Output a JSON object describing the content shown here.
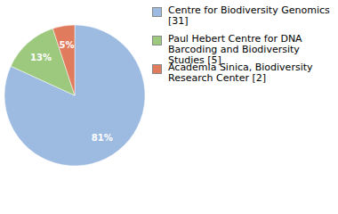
{
  "chart_data": {
    "type": "pie",
    "categories": [
      "Centre for Biodiversity Genomics [31]",
      "Paul Hebert Centre for DNA Barcoding and Biodiversity Studies [5]",
      "Academia Sinica, Biodiversity Research Center [2]"
    ],
    "values": [
      81,
      13,
      5
    ],
    "value_labels": [
      "81%",
      "13%",
      "5%"
    ],
    "colors": [
      "#9dbbe1",
      "#9dc97f",
      "#e07b5d"
    ],
    "data_labels": true,
    "legend": "upper right"
  }
}
